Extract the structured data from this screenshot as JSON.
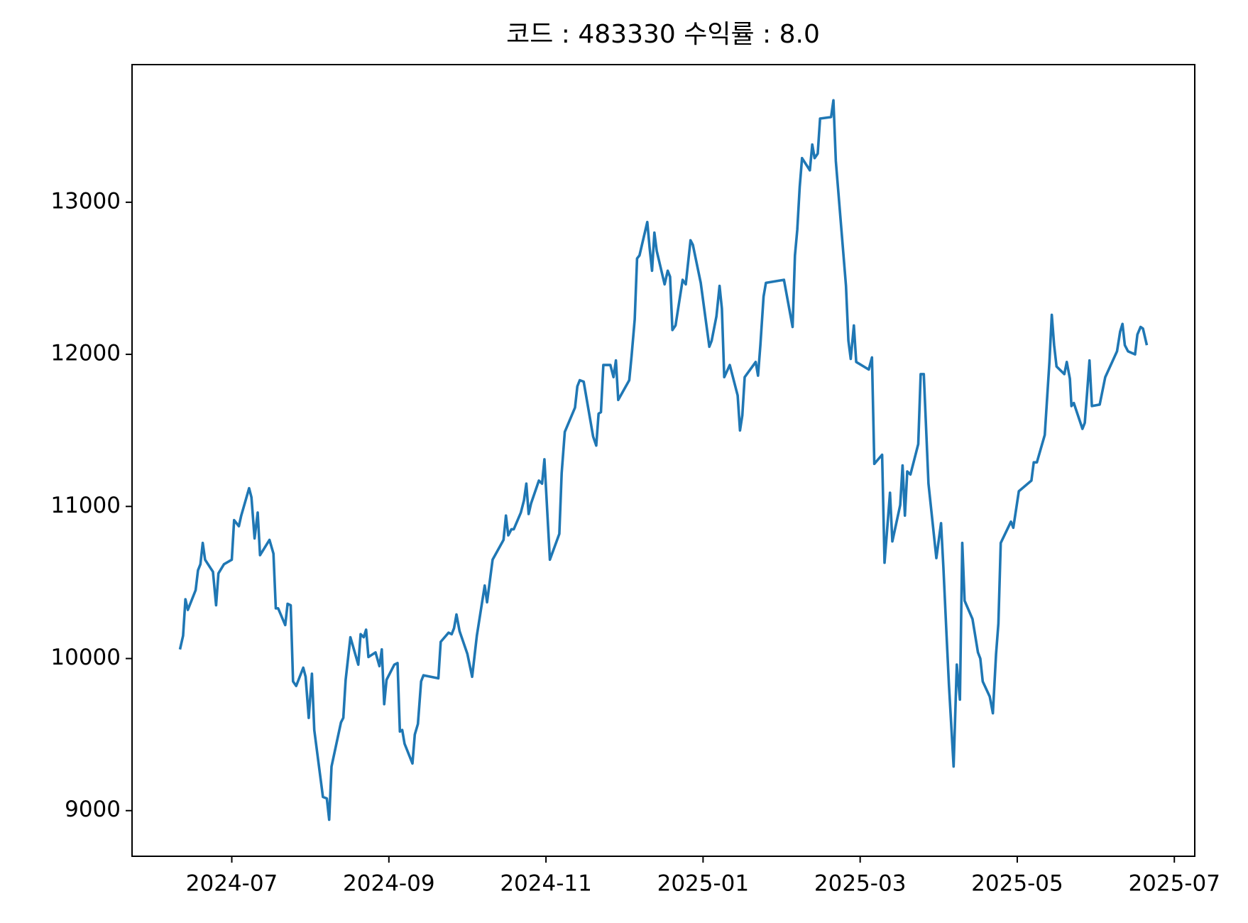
{
  "chart_data": {
    "type": "line",
    "title": "코드 : 483330 수익률 : 8.0",
    "x": [
      -0.66,
      -0.62,
      -0.59,
      -0.56,
      -0.46,
      -0.43,
      -0.4,
      -0.37,
      -0.34,
      -0.24,
      -0.2,
      -0.17,
      -0.1,
      0,
      0.03,
      0.09,
      0.12,
      0.22,
      0.25,
      0.29,
      0.33,
      0.36,
      0.48,
      0.53,
      0.56,
      0.59,
      0.68,
      0.71,
      0.75,
      0.78,
      0.82,
      0.91,
      0.94,
      0.98,
      1.02,
      1.05,
      1.16,
      1.21,
      1.24,
      1.27,
      1.39,
      1.42,
      1.45,
      1.51,
      1.61,
      1.64,
      1.68,
      1.71,
      1.74,
      1.83,
      1.88,
      1.91,
      1.94,
      1.97,
      2.07,
      2.11,
      2.14,
      2.17,
      2.2,
      2.3,
      2.33,
      2.37,
      2.41,
      2.44,
      2.63,
      2.66,
      2.76,
      2.8,
      2.83,
      2.86,
      2.9,
      3.0,
      3.06,
      3.12,
      3.22,
      3.25,
      3.32,
      3.46,
      3.49,
      3.52,
      3.56,
      3.59,
      3.68,
      3.72,
      3.75,
      3.78,
      3.81,
      3.91,
      3.95,
      3.98,
      4.05,
      4.17,
      4.2,
      4.24,
      4.37,
      4.4,
      4.43,
      4.48,
      4.6,
      4.64,
      4.67,
      4.7,
      4.73,
      4.82,
      4.86,
      4.89,
      4.92,
      5.06,
      5.09,
      5.13,
      5.16,
      5.19,
      5.29,
      5.32,
      5.35,
      5.38,
      5.41,
      5.51,
      5.55,
      5.58,
      5.61,
      5.65,
      5.74,
      5.78,
      5.84,
      5.87,
      5.97,
      6.08,
      6.11,
      6.17,
      6.21,
      6.24,
      6.27,
      6.34,
      6.44,
      6.47,
      6.5,
      6.53,
      6.67,
      6.7,
      6.73,
      6.77,
      6.8,
      7.03,
      7.14,
      7.17,
      7.2,
      7.23,
      7.26,
      7.36,
      7.39,
      7.42,
      7.46,
      7.49,
      7.63,
      7.66,
      7.69,
      7.82,
      7.85,
      7.88,
      7.92,
      7.95,
      8.11,
      8.15,
      8.18,
      8.28,
      8.31,
      8.38,
      8.41,
      8.51,
      8.54,
      8.57,
      8.6,
      8.64,
      8.74,
      8.77,
      8.81,
      8.87,
      8.97,
      9.03,
      9.06,
      9.1,
      9.13,
      9.19,
      9.23,
      9.27,
      9.3,
      9.33,
      9.43,
      9.5,
      9.53,
      9.56,
      9.65,
      9.69,
      9.73,
      9.76,
      9.79,
      9.92,
      9.95,
      10.02,
      10.18,
      10.21,
      10.25,
      10.35,
      10.41,
      10.44,
      10.47,
      10.5,
      10.6,
      10.63,
      10.67,
      10.69,
      10.72,
      10.83,
      10.86,
      10.89,
      10.92,
      10.95,
      11.05,
      11.12,
      11.27,
      11.31,
      11.34,
      11.37,
      11.41,
      11.5,
      11.53,
      11.57,
      11.6,
      11.65
    ],
    "series": [
      {
        "color": "#1f77b4",
        "values": [
          10060,
          10150,
          10390,
          10320,
          10450,
          10580,
          10620,
          10760,
          10650,
          10570,
          10350,
          10560,
          10620,
          10650,
          10910,
          10870,
          10940,
          11120,
          11060,
          10790,
          10960,
          10680,
          10780,
          10690,
          10330,
          10330,
          10220,
          10360,
          10350,
          9850,
          9820,
          9940,
          9880,
          9610,
          9900,
          9530,
          9090,
          9080,
          8940,
          9290,
          9580,
          9610,
          9860,
          10140,
          9960,
          10160,
          10140,
          10190,
          10010,
          10040,
          9950,
          10060,
          9700,
          9860,
          9960,
          9970,
          9520,
          9530,
          9440,
          9310,
          9500,
          9570,
          9850,
          9890,
          9870,
          10110,
          10170,
          10160,
          10200,
          10290,
          10180,
          10030,
          9880,
          10150,
          10480,
          10370,
          10650,
          10780,
          10940,
          10810,
          10850,
          10850,
          10960,
          11040,
          11150,
          10950,
          11020,
          11170,
          11150,
          11310,
          10650,
          10820,
          11220,
          11490,
          11650,
          11790,
          11830,
          11820,
          11460,
          11400,
          11610,
          11620,
          11930,
          11930,
          11850,
          11960,
          11700,
          11830,
          11990,
          12230,
          12630,
          12650,
          12870,
          12700,
          12550,
          12800,
          12680,
          12460,
          12550,
          12510,
          12160,
          12190,
          12490,
          12460,
          12750,
          12720,
          12470,
          12050,
          12090,
          12250,
          12450,
          12300,
          11850,
          11930,
          11730,
          11500,
          11600,
          11850,
          11950,
          11860,
          12060,
          12380,
          12470,
          12490,
          12180,
          12650,
          12820,
          13100,
          13290,
          13210,
          13380,
          13290,
          13320,
          13550,
          13560,
          13670,
          13270,
          12450,
          12090,
          11970,
          12190,
          11950,
          11900,
          11980,
          11280,
          11340,
          10630,
          11090,
          10770,
          11010,
          11270,
          10940,
          11230,
          11210,
          11410,
          11870,
          11870,
          11150,
          10660,
          10890,
          10600,
          10150,
          9830,
          9290,
          9960,
          9730,
          10760,
          10380,
          10260,
          10040,
          10000,
          9850,
          9750,
          9640,
          10030,
          10230,
          10760,
          10900,
          10860,
          11100,
          11170,
          11290,
          11290,
          11470,
          11950,
          12260,
          12060,
          11920,
          11870,
          11950,
          11840,
          11660,
          11680,
          11510,
          11550,
          11750,
          11960,
          11660,
          11670,
          11850,
          12020,
          12150,
          12200,
          12060,
          12020,
          12000,
          12130,
          12180,
          12170,
          12060
        ]
      }
    ],
    "xlim": [
      -1.27,
      12.26
    ],
    "xticks": [
      {
        "value": 0,
        "label": "2024-07"
      },
      {
        "value": 2,
        "label": "2024-09"
      },
      {
        "value": 4,
        "label": "2024-11"
      },
      {
        "value": 6,
        "label": "2025-01"
      },
      {
        "value": 8,
        "label": "2025-03"
      },
      {
        "value": 10,
        "label": "2025-05"
      },
      {
        "value": 12,
        "label": "2025-07"
      }
    ],
    "ylim": [
      8700,
      13905
    ],
    "yticks": [
      9000,
      10000,
      11000,
      12000,
      13000
    ],
    "grid": false
  }
}
